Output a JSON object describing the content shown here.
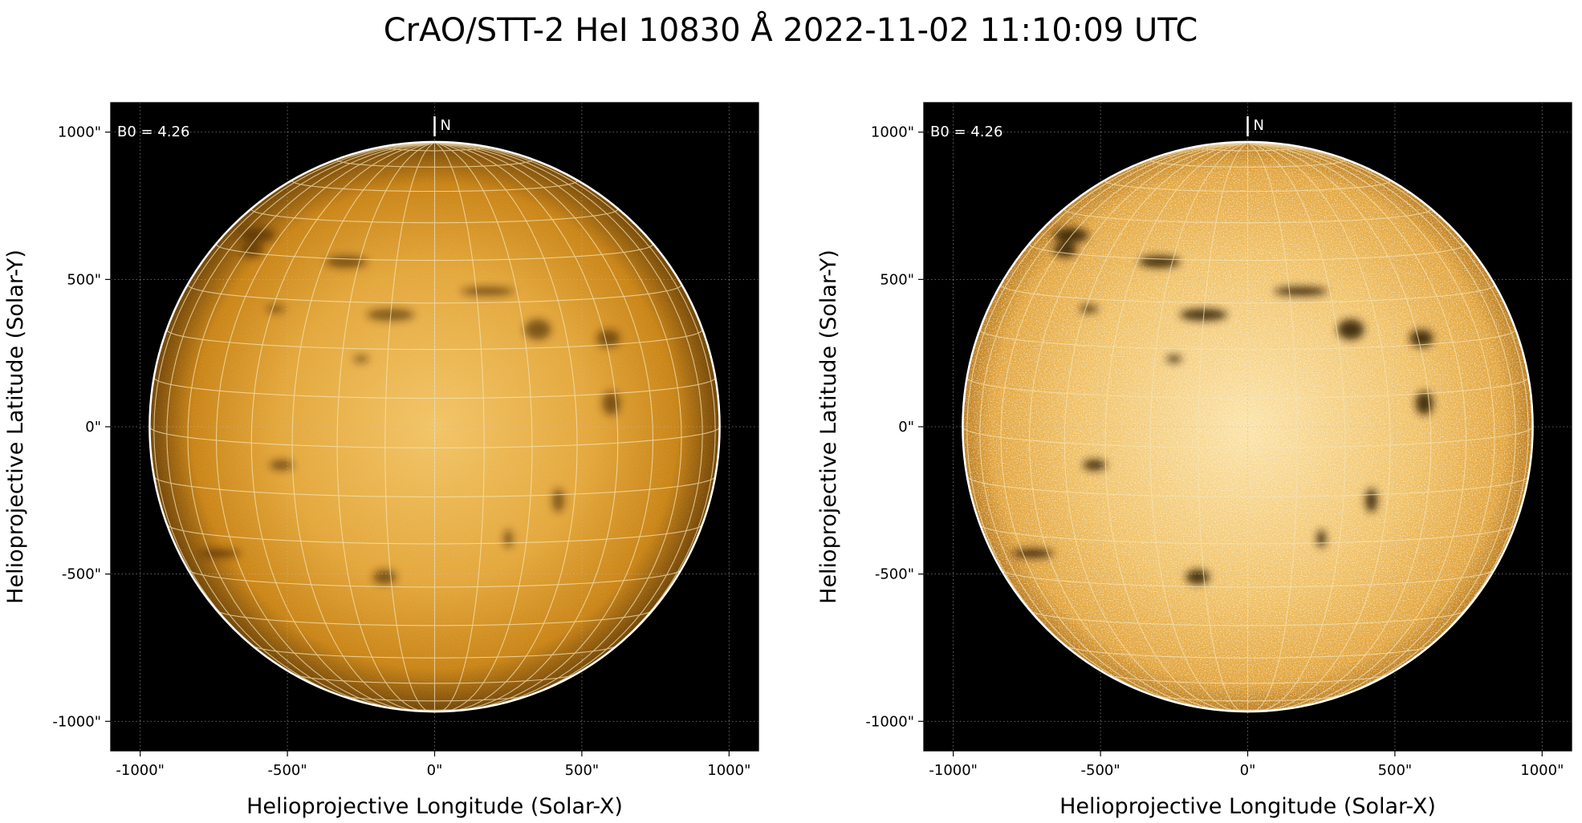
{
  "figure": {
    "title": "CrAO/STT-2 HeI 10830 Å 2022-11-02 11:10:09 UTC"
  },
  "colors": {
    "background": "#000000",
    "disk_center": "#f2c466",
    "disk_mid": "#d99320",
    "disk_limb": "#7a4a08",
    "grid_line": "#f5e3b5",
    "limb_circle": "#ffffff"
  },
  "panels": [
    {
      "id": "original",
      "xlabel": "Helioprojective Longitude (Solar-X)",
      "ylabel": "Helioprojective Latitude (Solar-Y)",
      "b0_label": "B0 = 4.26",
      "north_label": "N",
      "x_ticks": [
        "-1000\"",
        "-500\"",
        "0\"",
        "500\"",
        "1000\""
      ],
      "y_ticks": [
        "1000\"",
        "500\"",
        "0\"",
        "-500\"",
        "-1000\""
      ],
      "contrast": "normal"
    },
    {
      "id": "enhanced",
      "xlabel": "Helioprojective Longitude (Solar-X)",
      "ylabel": "Helioprojective Latitude (Solar-Y)",
      "b0_label": "B0 = 4.26",
      "north_label": "N",
      "x_ticks": [
        "-1000\"",
        "-500\"",
        "0\"",
        "500\"",
        "1000\""
      ],
      "y_ticks": [
        "1000\"",
        "500\"",
        "0\"",
        "-500\"",
        "-1000\""
      ],
      "contrast": "enhanced"
    }
  ],
  "axes": {
    "x_tick_values": [
      -1000,
      -500,
      0,
      500,
      1000
    ],
    "y_tick_values": [
      1000,
      500,
      0,
      -500,
      -1000
    ],
    "xlim": [
      -1100,
      1100
    ],
    "ylim": [
      -1100,
      1100
    ],
    "solar_radius_arcsec": 968,
    "b0_degrees": 4.26
  }
}
